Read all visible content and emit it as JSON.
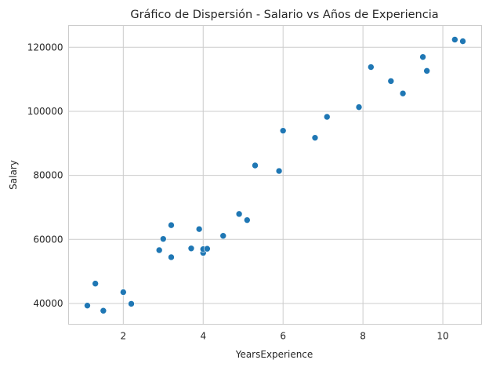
{
  "chart_data": {
    "type": "scatter",
    "title": "Gráfico de Dispersión - Salario vs Años de Experiencia",
    "xlabel": "YearsExperience",
    "ylabel": "Salary",
    "xlim": [
      0.63,
      10.97
    ],
    "ylim": [
      33500,
      126800
    ],
    "xticks": [
      2,
      4,
      6,
      8,
      10
    ],
    "yticks": [
      40000,
      60000,
      80000,
      100000,
      120000
    ],
    "grid": true,
    "point_color": "#1f77b4",
    "points": [
      {
        "x": 1.1,
        "y": 39343
      },
      {
        "x": 1.3,
        "y": 46205
      },
      {
        "x": 1.5,
        "y": 37731
      },
      {
        "x": 2.0,
        "y": 43525
      },
      {
        "x": 2.2,
        "y": 39891
      },
      {
        "x": 2.9,
        "y": 56642
      },
      {
        "x": 3.0,
        "y": 60150
      },
      {
        "x": 3.2,
        "y": 54445
      },
      {
        "x": 3.2,
        "y": 64445
      },
      {
        "x": 3.7,
        "y": 57189
      },
      {
        "x": 3.9,
        "y": 63218
      },
      {
        "x": 4.0,
        "y": 55794
      },
      {
        "x": 4.0,
        "y": 56957
      },
      {
        "x": 4.1,
        "y": 57081
      },
      {
        "x": 4.5,
        "y": 61111
      },
      {
        "x": 4.9,
        "y": 67938
      },
      {
        "x": 5.1,
        "y": 66029
      },
      {
        "x": 5.3,
        "y": 83088
      },
      {
        "x": 5.9,
        "y": 81363
      },
      {
        "x": 6.0,
        "y": 93940
      },
      {
        "x": 6.8,
        "y": 91738
      },
      {
        "x": 7.1,
        "y": 98273
      },
      {
        "x": 7.9,
        "y": 101302
      },
      {
        "x": 8.2,
        "y": 113812
      },
      {
        "x": 8.7,
        "y": 109431
      },
      {
        "x": 9.0,
        "y": 105582
      },
      {
        "x": 9.5,
        "y": 116969
      },
      {
        "x": 9.6,
        "y": 112635
      },
      {
        "x": 10.3,
        "y": 122391
      },
      {
        "x": 10.5,
        "y": 121872
      }
    ]
  }
}
